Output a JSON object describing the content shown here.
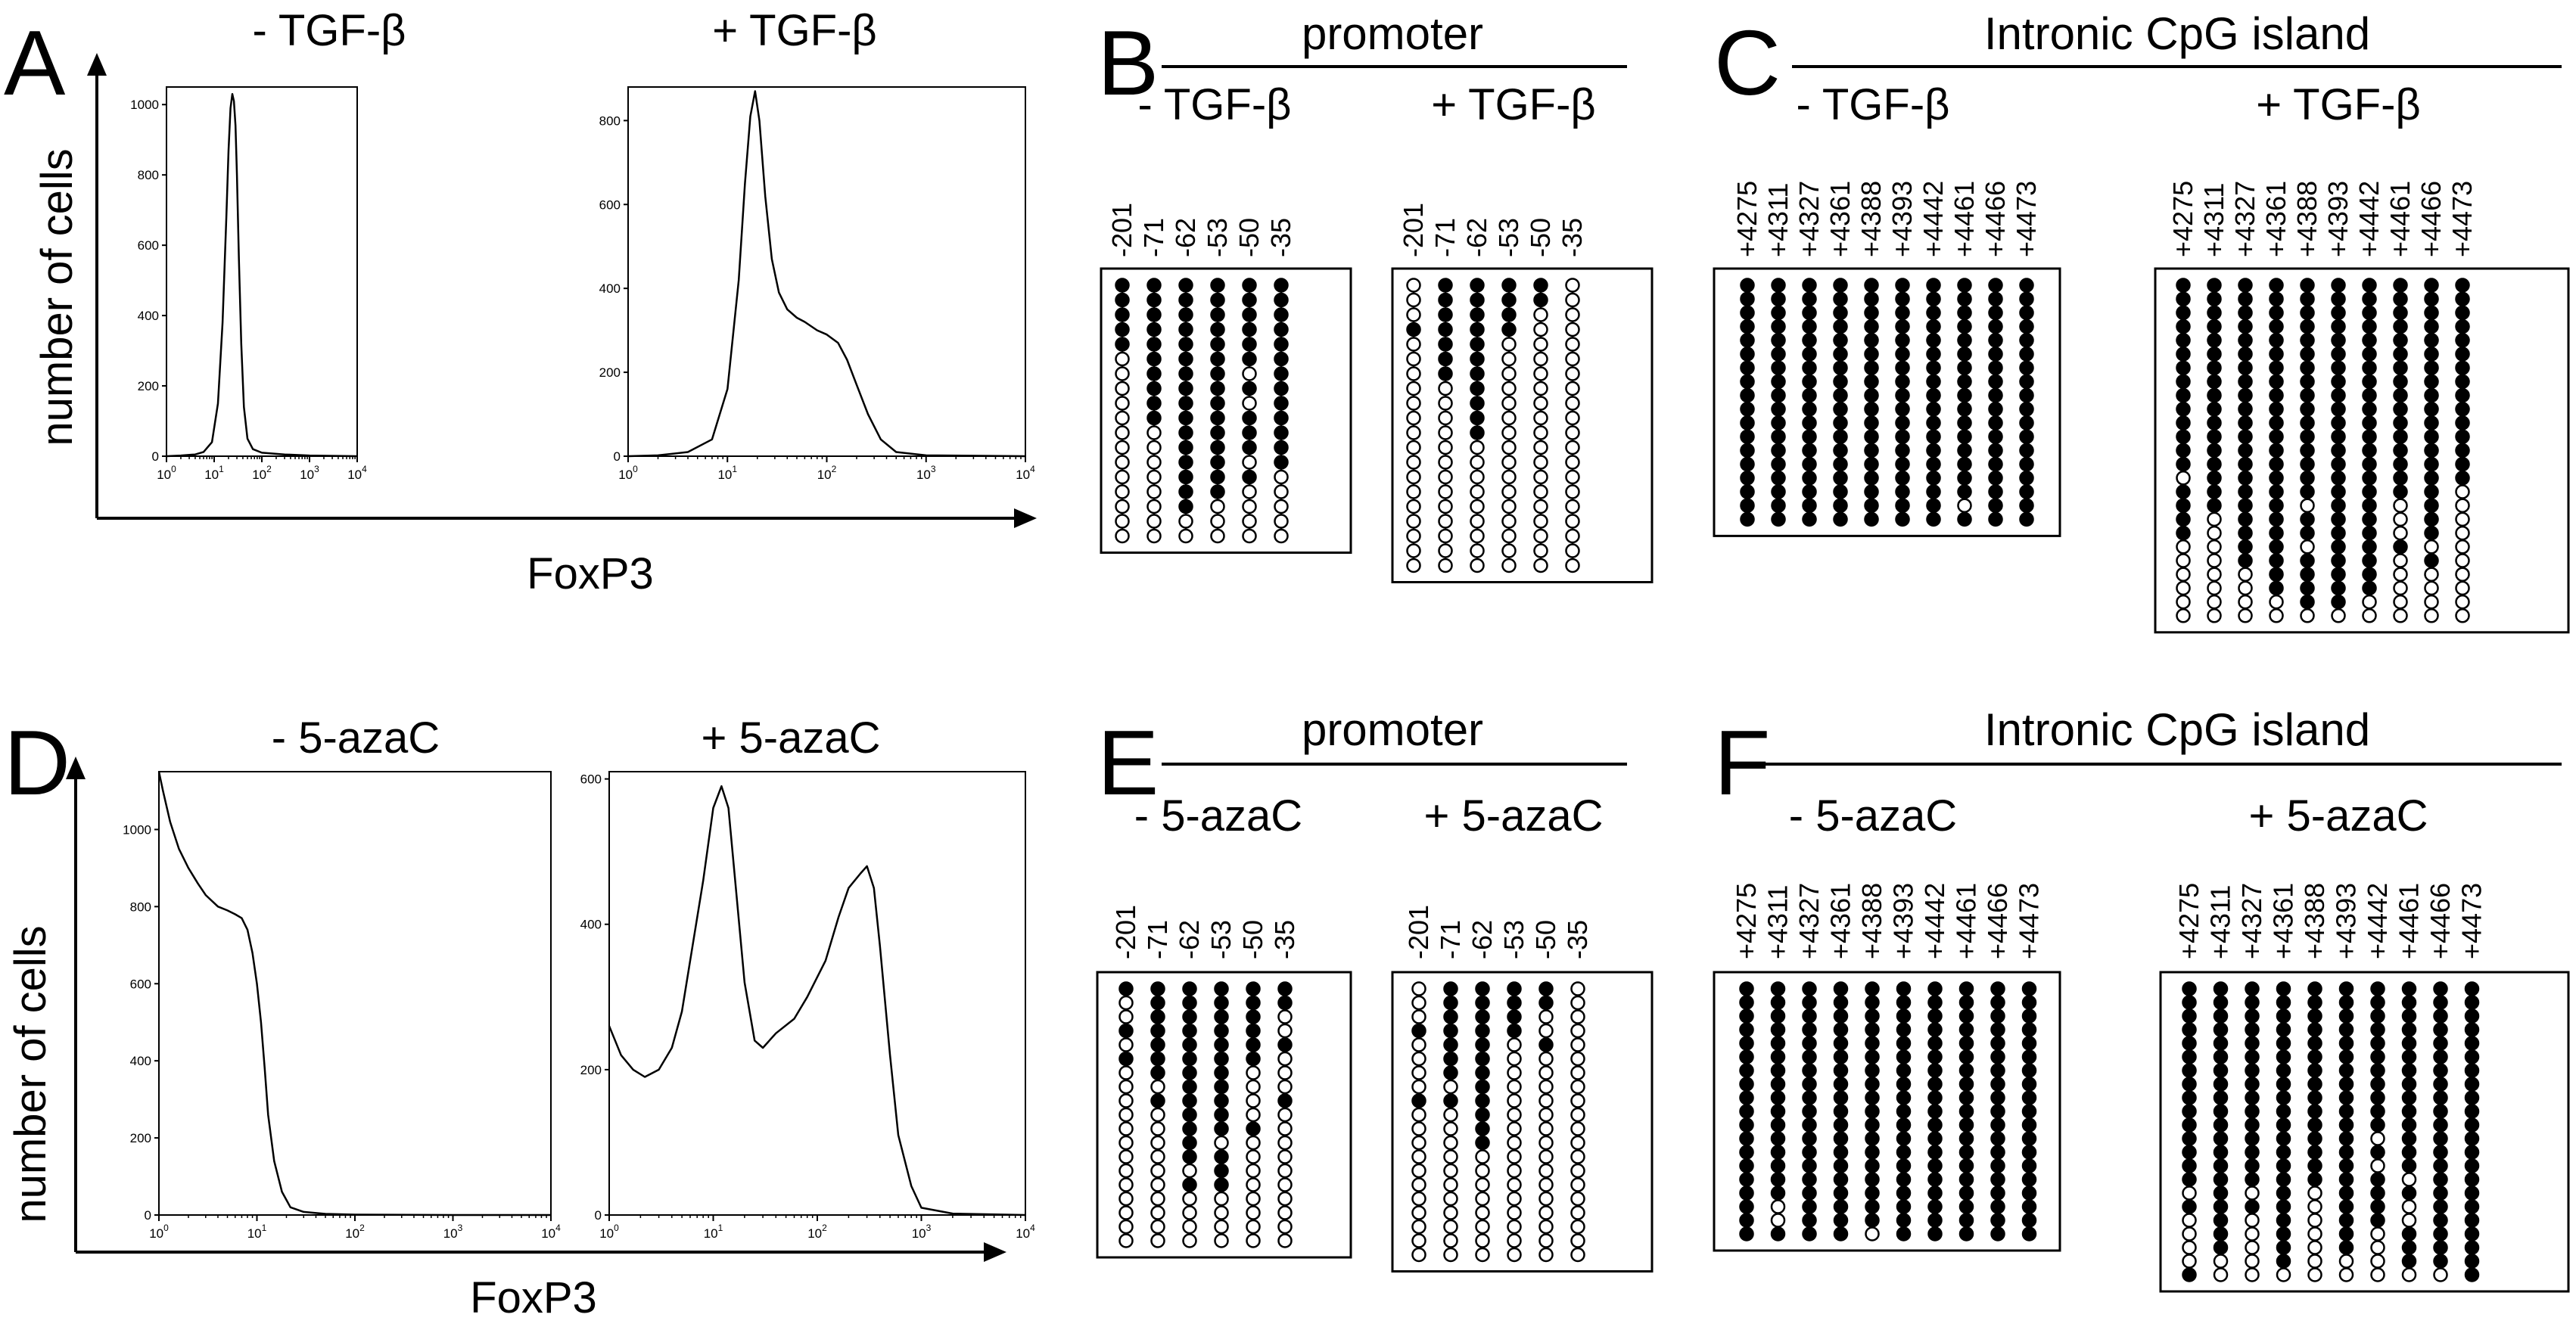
{
  "chart_data": {
    "panels": [
      {
        "letter": "A",
        "type": "line",
        "xlabel": "FoxP3",
        "ylabel": "number of cells",
        "xscale": "log",
        "x_tick_labels": [
          "10^0",
          "10^1",
          "10^2",
          "10^3",
          "10^4"
        ],
        "subplots": [
          {
            "title": "- TGF-β",
            "ylim": [
              0,
              1050
            ],
            "y_ticks": [
              "0",
              "200",
              "400",
              "600",
              "800",
              "1000"
            ],
            "x": [
              1,
              2,
              4,
              6,
              9,
              12,
              15,
              18,
              20,
              22,
              24,
              26,
              28,
              30,
              33,
              37,
              42,
              50,
              65,
              100,
              300,
              1000,
              10000
            ],
            "y": [
              0,
              2,
              5,
              12,
              40,
              150,
              380,
              680,
              870,
              990,
              1030,
              1010,
              940,
              800,
              560,
              320,
              140,
              50,
              20,
              10,
              5,
              2,
              0
            ]
          },
          {
            "title": "+ TGF-β",
            "ylim": [
              0,
              880
            ],
            "y_ticks": [
              "0",
              "200",
              "400",
              "600",
              "800"
            ],
            "x": [
              1,
              2,
              4,
              7,
              10,
              13,
              15,
              17,
              19,
              21,
              24,
              28,
              33,
              40,
              50,
              60,
              80,
              100,
              130,
              160,
              200,
              260,
              350,
              500,
              1000,
              10000
            ],
            "y": [
              0,
              2,
              10,
              40,
              160,
              420,
              650,
              810,
              870,
              800,
              620,
              470,
              390,
              350,
              330,
              320,
              300,
              290,
              270,
              230,
              170,
              100,
              40,
              10,
              2,
              0
            ]
          }
        ]
      },
      {
        "letter": "D",
        "type": "line",
        "xlabel": "FoxP3",
        "ylabel": "number of cells",
        "xscale": "log",
        "x_tick_labels": [
          "10^0",
          "10^1",
          "10^2",
          "10^3",
          "10^4"
        ],
        "subplots": [
          {
            "title": "- 5-azaC",
            "ylim": [
              0,
              1150
            ],
            "y_ticks": [
              "0",
              "200",
              "400",
              "600",
              "800",
              "1000"
            ],
            "x": [
              1,
              1.1,
              1.3,
              1.6,
              2,
              2.5,
              3,
              4,
              5,
              6,
              7,
              8,
              9,
              10,
              11,
              12,
              13,
              15,
              18,
              22,
              30,
              50,
              100,
              1000,
              10000
            ],
            "y": [
              1150,
              1100,
              1020,
              950,
              900,
              860,
              830,
              800,
              790,
              780,
              770,
              740,
              680,
              600,
              500,
              380,
              260,
              140,
              60,
              20,
              8,
              3,
              1,
              0,
              0
            ]
          },
          {
            "title": "+ 5-azaC",
            "ylim": [
              0,
              610
            ],
            "y_ticks": [
              "0",
              "200",
              "400",
              "600"
            ],
            "x": [
              1,
              1.3,
              1.7,
              2.2,
              3,
              4,
              5,
              6,
              8,
              10,
              12,
              14,
              16,
              20,
              25,
              30,
              40,
              60,
              80,
              120,
              160,
              200,
              260,
              300,
              350,
              400,
              500,
              600,
              800,
              1000,
              2000,
              10000
            ],
            "y": [
              260,
              220,
              200,
              190,
              200,
              230,
              280,
              350,
              460,
              560,
              590,
              560,
              470,
              320,
              240,
              230,
              250,
              270,
              300,
              350,
              410,
              450,
              470,
              480,
              450,
              370,
              220,
              110,
              40,
              10,
              2,
              0
            ]
          }
        ]
      },
      {
        "letter": "B",
        "type": "table",
        "region": "promoter",
        "groups": [
          {
            "title": "- TGF-β",
            "positions": [
              "-201",
              "-71",
              "-62",
              "-53",
              "-50",
              "-35"
            ],
            "rows": [
              "111111",
              "111111",
              "111111",
              "111111",
              "111111",
              "011111",
              "011101",
              "011111",
              "011101",
              "011111",
              "001111",
              "001111",
              "001101",
              "001110",
              "001100",
              "001000",
              "000000",
              "000000"
            ]
          },
          {
            "title": "+ TGF-β",
            "positions": [
              "-201",
              "-71",
              "-62",
              "-53",
              "-50",
              "-35"
            ],
            "rows": [
              "011110",
              "011110",
              "011100",
              "111100",
              "011000",
              "011000",
              "011000",
              "001000",
              "001000",
              "001000",
              "001000",
              "000000",
              "000000",
              "000000",
              "000000",
              "000000",
              "000000",
              "000000",
              "000000",
              "000000"
            ]
          }
        ]
      },
      {
        "letter": "C",
        "type": "table",
        "region": "Intronic CpG island",
        "groups": [
          {
            "title": "- TGF-β",
            "positions": [
              "+4275",
              "+4311",
              "+4327",
              "+4361",
              "+4388",
              "+4393",
              "+4442",
              "+4461",
              "+4466",
              "+4473"
            ],
            "rows": [
              "1111111111",
              "1111111111",
              "1111111111",
              "1111111111",
              "1111111111",
              "1111111111",
              "1111111111",
              "1111111111",
              "1111111111",
              "1111111111",
              "1111111111",
              "1111111111",
              "1111111111",
              "1111111111",
              "1111111111",
              "1111111111",
              "1111111011",
              "1111111111"
            ]
          },
          {
            "title": "+ TGF-β",
            "positions": [
              "+4275",
              "+4311",
              "+4327",
              "+4361",
              "+4388",
              "+4393",
              "+4442",
              "+4461",
              "+4466",
              "+4473"
            ],
            "rows": [
              "1111111111",
              "1111111111",
              "1111111111",
              "1111111111",
              "1111111111",
              "1111111111",
              "1111111111",
              "1111111111",
              "1111111111",
              "1111111111",
              "1111111111",
              "1111111111",
              "1111111111",
              "1111111111",
              "0111111111",
              "1111111110",
              "1111011010",
              "1011111010",
              "1011111010",
              "0011011100",
              "0011111010",
              "0001111000",
              "0001111000",
              "0000110000",
              "0000000000"
            ]
          }
        ]
      },
      {
        "letter": "E",
        "type": "table",
        "region": "promoter",
        "groups": [
          {
            "title": "- 5-azaC",
            "positions": [
              "-201",
              "-71",
              "-62",
              "-53",
              "-50",
              "-35"
            ],
            "rows": [
              "111111",
              "011111",
              "011110",
              "111110",
              "011111",
              "111110",
              "011100",
              "001100",
              "011101",
              "001100",
              "001110",
              "001000",
              "001100",
              "000100",
              "001100",
              "000000",
              "000000",
              "000000",
              "000000"
            ]
          },
          {
            "title": "+ 5-azaC",
            "positions": [
              "-201",
              "-71",
              "-62",
              "-53",
              "-50",
              "-35"
            ],
            "rows": [
              "011110",
              "011110",
              "011100",
              "111100",
              "011010",
              "011000",
              "011000",
              "001000",
              "111000",
              "001000",
              "001000",
              "001000",
              "000000",
              "000000",
              "000000",
              "000000",
              "000000",
              "000000",
              "000000",
              "000000"
            ]
          }
        ]
      },
      {
        "letter": "F",
        "type": "table",
        "region": "Intronic CpG island",
        "groups": [
          {
            "title": "- 5-azaC",
            "positions": [
              "+4275",
              "+4311",
              "+4327",
              "+4361",
              "+4388",
              "+4393",
              "+4442",
              "+4461",
              "+4466",
              "+4473"
            ],
            "rows": [
              "1111111111",
              "1111111111",
              "1111111111",
              "1111111111",
              "1111111111",
              "1111111111",
              "1111111111",
              "1111111111",
              "1111111111",
              "1111111111",
              "1111111111",
              "1111111111",
              "1111111111",
              "1111111111",
              "1111111111",
              "1111111111",
              "1011111111",
              "1011111111",
              "1111011111"
            ]
          },
          {
            "title": "+ 5-azaC",
            "positions": [
              "+4275",
              "+4311",
              "+4327",
              "+4361",
              "+4388",
              "+4393",
              "+4442",
              "+4461",
              "+4466",
              "+4473"
            ],
            "rows": [
              "1111111111",
              "1111111111",
              "1111111111",
              "1111111111",
              "1111111111",
              "1111111111",
              "1111111111",
              "1111111111",
              "1111111111",
              "1111111111",
              "1111111111",
              "1111110111",
              "1111111111",
              "1111110111",
              "1111111011",
              "0101011111",
              "1111011011",
              "0101011011",
              "0101010111",
              "0101010111",
              "0001000111",
              "1000000001"
            ]
          }
        ]
      }
    ]
  }
}
